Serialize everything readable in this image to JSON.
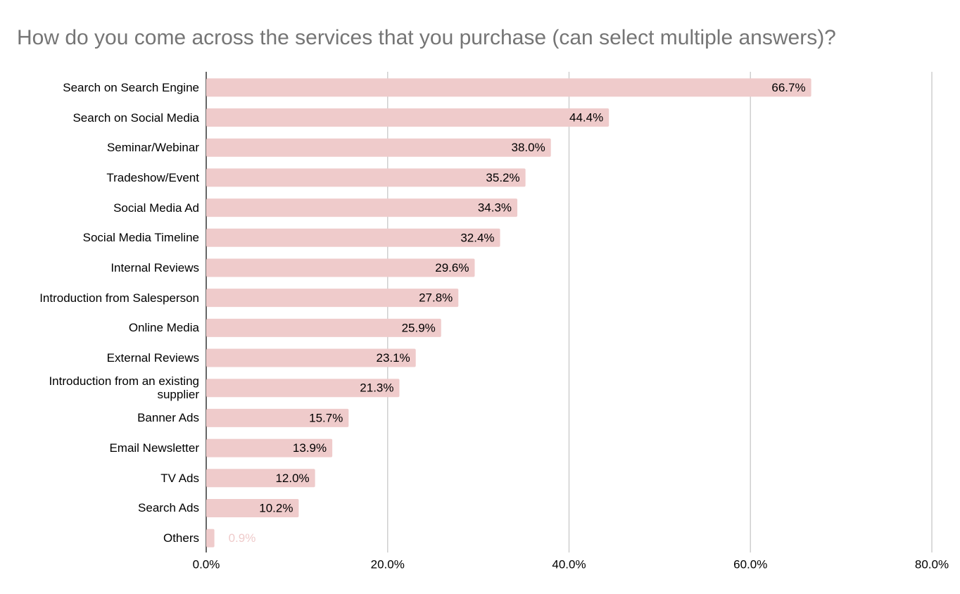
{
  "chart_data": {
    "type": "bar",
    "orientation": "horizontal",
    "title": "How do you come across the services that you purchase (can select multiple answers)?",
    "categories": [
      "Search on Search Engine",
      "Search on Social Media",
      "Seminar/Webinar",
      "Tradeshow/Event",
      "Social Media Ad",
      "Social Media Timeline",
      "Internal Reviews",
      "Introduction from Salesperson",
      "Online Media",
      "External Reviews",
      "Introduction from an existing supplier",
      "Banner Ads",
      "Email Newsletter",
      "TV Ads",
      "Search Ads",
      "Others"
    ],
    "values": [
      66.7,
      44.4,
      38.0,
      35.2,
      34.3,
      32.4,
      29.6,
      27.8,
      25.9,
      23.1,
      21.3,
      15.7,
      13.9,
      12.0,
      10.2,
      0.9
    ],
    "value_labels": [
      "66.7%",
      "44.4%",
      "38.0%",
      "35.2%",
      "34.3%",
      "32.4%",
      "29.6%",
      "27.8%",
      "25.9%",
      "23.1%",
      "21.3%",
      "15.7%",
      "13.9%",
      "12.0%",
      "10.2%",
      "0.9%"
    ],
    "color": "#efcbcb",
    "xlim": [
      0,
      80
    ],
    "xticks": [
      {
        "value": 0,
        "label": "0.0%"
      },
      {
        "value": 20,
        "label": "20.0%"
      },
      {
        "value": 40,
        "label": "40.0%"
      },
      {
        "value": 60,
        "label": "60.0%"
      },
      {
        "value": 80,
        "label": "80.0%"
      }
    ],
    "grid": true
  }
}
